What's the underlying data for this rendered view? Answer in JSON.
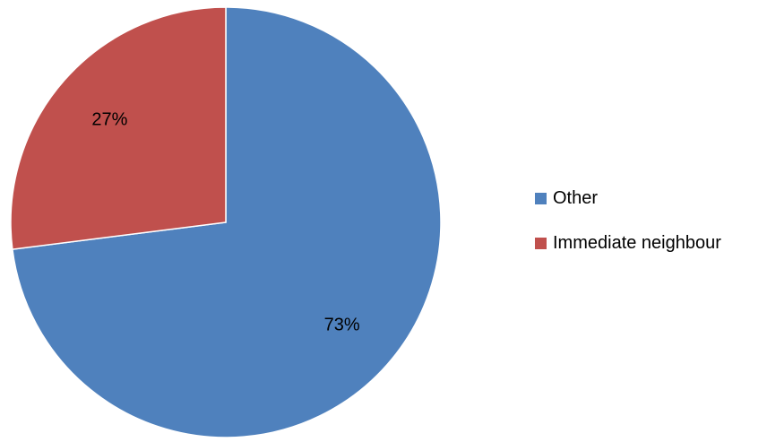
{
  "chart_data": {
    "type": "pie",
    "title": "",
    "slices": [
      {
        "label": "Other",
        "value": 73,
        "data_label": "73%",
        "color": "#4F81BD"
      },
      {
        "label": "Immediate neighbour",
        "value": 27,
        "data_label": "27%",
        "color": "#C0504D"
      }
    ],
    "start_angle_deg": 0,
    "direction": "clockwise",
    "legend_position": "right"
  }
}
